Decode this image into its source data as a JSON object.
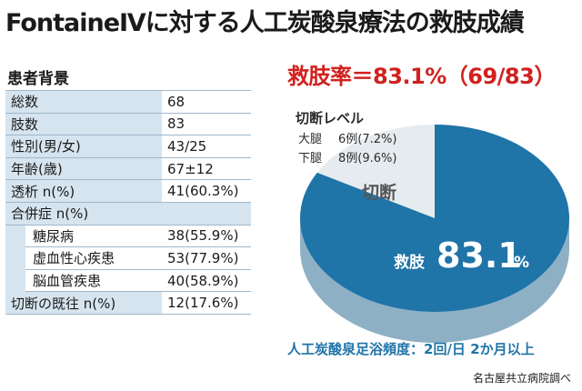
{
  "title": "FontaineⅣに対する人工炭酸泉療法の救肢成績",
  "background": {
    "label": "患者背景",
    "rows": [
      {
        "key": "総数",
        "value": "68",
        "sub": false
      },
      {
        "key": "肢数",
        "value": "83",
        "sub": false
      },
      {
        "key": "性別(男/女)",
        "value": "43/25",
        "sub": false
      },
      {
        "key": "年齢(歳)",
        "value": "67±12",
        "sub": false
      },
      {
        "key": "透析 n(%)",
        "value": "41(60.3%)",
        "sub": false
      },
      {
        "key": "合併症 n(%)",
        "value": "",
        "sub": false
      },
      {
        "key": "糖尿病",
        "value": "38(55.9%)",
        "sub": true
      },
      {
        "key": "虚血性心疾患",
        "value": "53(77.9%)",
        "sub": true
      },
      {
        "key": "脳血管疾患",
        "value": "40(58.9%)",
        "sub": true
      },
      {
        "key": "切断の既往 n(%)",
        "value": "12(17.6%)",
        "sub": false
      }
    ]
  },
  "chart_data": {
    "type": "pie",
    "title": "救肢率＝83.1%（69/83）",
    "slices": [
      {
        "name": "救肢",
        "value": 83.1,
        "value_label": "83.1",
        "unit": "%",
        "color": "#1f74a8"
      },
      {
        "name": "切断",
        "value": 16.9,
        "color": "#e6ebef"
      }
    ],
    "amputation_breakdown": {
      "heading": "切断レベル",
      "items": [
        {
          "label": "大腿",
          "text": "6例(7.2%)"
        },
        {
          "label": "下腿",
          "text": "8例(9.6%)"
        }
      ]
    },
    "side_color": "#8eb0c5",
    "legend": "none"
  },
  "footnote": "人工炭酸泉足浴頻度：2回/日 2か月以上",
  "source": "名古屋共立病院調べ"
}
